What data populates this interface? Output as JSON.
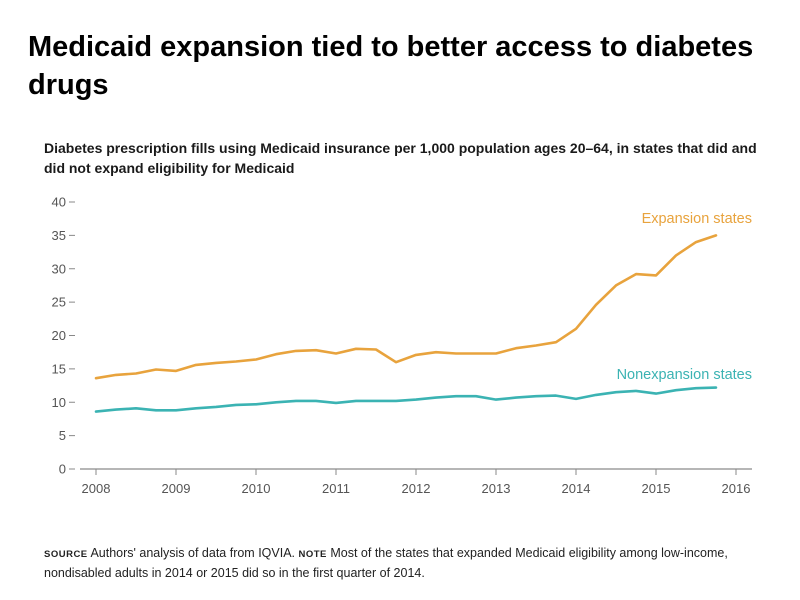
{
  "headline": "Medicaid expansion tied to better access to diabetes drugs",
  "footnote": {
    "source_tag": "SOURCE",
    "source_text": "Authors' analysis of data from IQVIA.",
    "note_tag": "NOTE",
    "note_text": "Most of the states that expanded Medicaid eligibility among low-income, nondisabled adults in 2014 or 2015 did so in the first quarter of 2014."
  },
  "chart_data": {
    "type": "line",
    "title": "Diabetes prescription fills using Medicaid insurance per 1,000 population ages 20–64, in states that did and did not expand eligibility for Medicaid",
    "xlabel": "",
    "ylabel": "",
    "xlim": [
      2008,
      2016
    ],
    "ylim": [
      0,
      40
    ],
    "x_ticks": [
      "2008",
      "2009",
      "2010",
      "2011",
      "2012",
      "2013",
      "2014",
      "2015",
      "2016"
    ],
    "y_ticks": [
      "0",
      "5",
      "10",
      "15",
      "20",
      "25",
      "30",
      "35",
      "40"
    ],
    "grid": false,
    "legend": "inline labels",
    "series": [
      {
        "name": "Expansion states",
        "color": "#e8a33d",
        "x": [
          2008.0,
          2008.25,
          2008.5,
          2008.75,
          2009.0,
          2009.25,
          2009.5,
          2009.75,
          2010.0,
          2010.25,
          2010.5,
          2010.75,
          2011.0,
          2011.25,
          2011.5,
          2011.75,
          2012.0,
          2012.25,
          2012.5,
          2012.75,
          2013.0,
          2013.25,
          2013.5,
          2013.75,
          2014.0,
          2014.25,
          2014.5,
          2014.75,
          2015.0,
          2015.25,
          2015.5,
          2015.75
        ],
        "y": [
          13.6,
          14.1,
          14.3,
          14.9,
          14.7,
          15.6,
          15.9,
          16.1,
          16.4,
          17.2,
          17.7,
          17.8,
          17.3,
          18.0,
          17.9,
          16.0,
          17.1,
          17.5,
          17.3,
          17.3,
          17.3,
          18.1,
          18.5,
          19.0,
          21.0,
          24.6,
          27.5,
          29.2,
          29.0,
          32.0,
          34.0,
          35.0
        ]
      },
      {
        "name": "Nonexpansion states",
        "color": "#3bb3b3",
        "x": [
          2008.0,
          2008.25,
          2008.5,
          2008.75,
          2009.0,
          2009.25,
          2009.5,
          2009.75,
          2010.0,
          2010.25,
          2010.5,
          2010.75,
          2011.0,
          2011.25,
          2011.5,
          2011.75,
          2012.0,
          2012.25,
          2012.5,
          2012.75,
          2013.0,
          2013.25,
          2013.5,
          2013.75,
          2014.0,
          2014.25,
          2014.5,
          2014.75,
          2015.0,
          2015.25,
          2015.5,
          2015.75
        ],
        "y": [
          8.6,
          8.9,
          9.1,
          8.8,
          8.8,
          9.1,
          9.3,
          9.6,
          9.7,
          10.0,
          10.2,
          10.2,
          9.9,
          10.2,
          10.2,
          10.2,
          10.4,
          10.7,
          10.9,
          10.9,
          10.4,
          10.7,
          10.9,
          11.0,
          10.5,
          11.1,
          11.5,
          11.7,
          11.3,
          11.8,
          12.1,
          12.2
        ]
      }
    ]
  }
}
